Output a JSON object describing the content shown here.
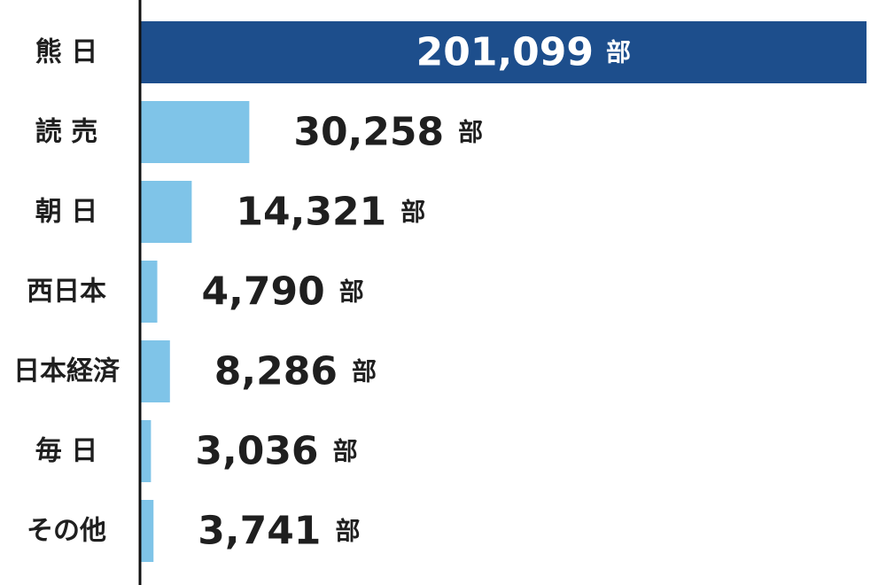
{
  "theme": {
    "highlight_color": "#1d4e8c",
    "bar_color": "#7fc4e8",
    "axis_color": "#111111"
  },
  "chart_data": {
    "type": "bar",
    "orientation": "horizontal",
    "categories": [
      "熊 日",
      "読 売",
      "朝 日",
      "西日本",
      "日本経済",
      "毎 日",
      "その他"
    ],
    "values": [
      201099,
      30258,
      14321,
      4790,
      8286,
      3036,
      3741
    ],
    "value_labels": [
      "201,099",
      "30,258",
      "14,321",
      "4,790",
      "8,286",
      "3,036",
      "3,741"
    ],
    "unit": "部",
    "highlight_index": 0,
    "xlim": [
      0,
      201099
    ],
    "grid": false,
    "legend": "none"
  }
}
